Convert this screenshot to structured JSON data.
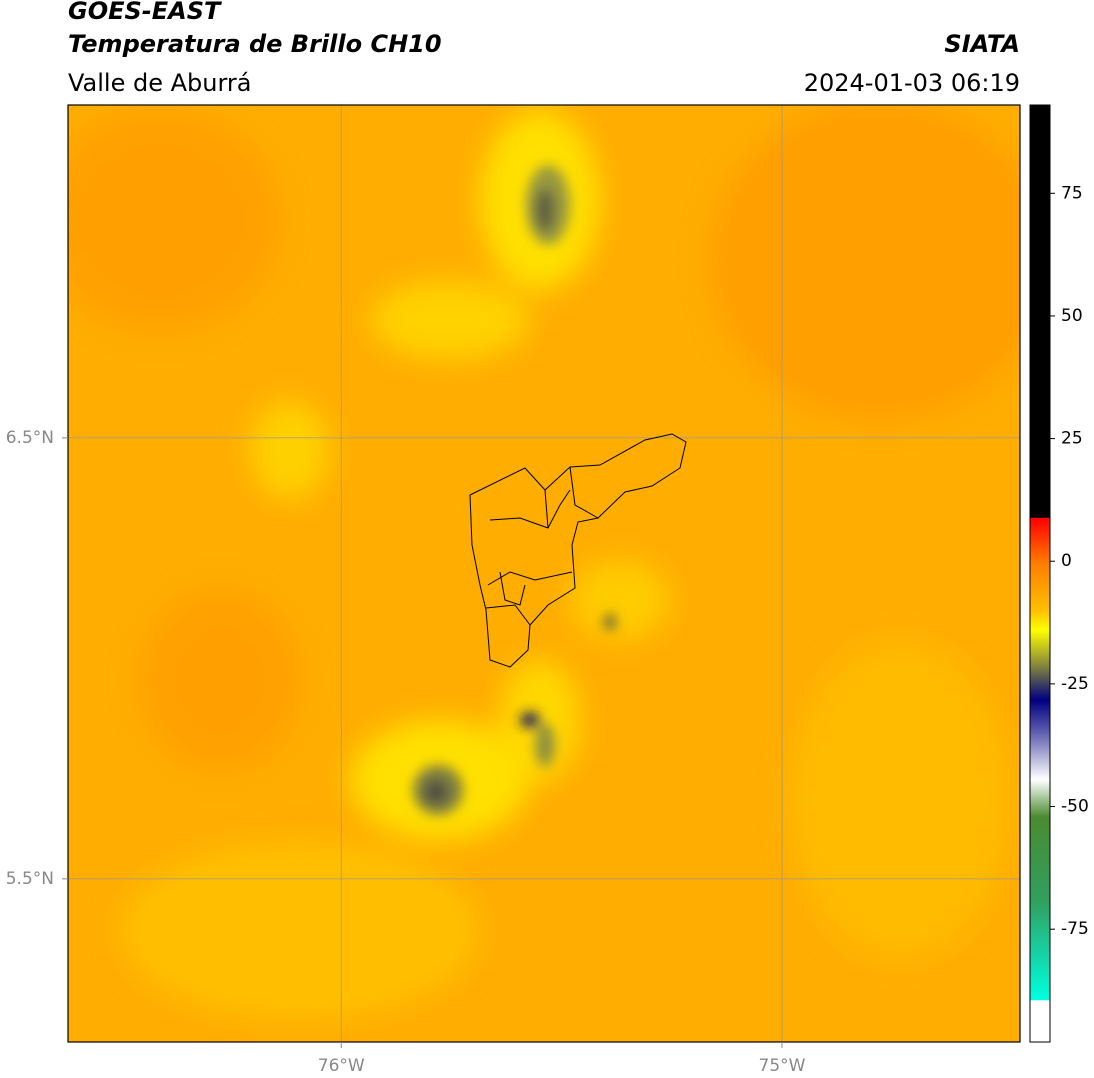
{
  "header": {
    "line1": "GOES-EAST",
    "title": "Temperatura de Brillo CH10",
    "region": "Valle de Aburrá",
    "source": "SIATA",
    "datetime": "2024-01-03 06:19"
  },
  "map": {
    "xlim": [
      -76.62,
      -74.46
    ],
    "ylim": [
      5.13,
      7.255
    ],
    "xticks": [
      {
        "value": -76,
        "label": "76°W"
      },
      {
        "value": -75,
        "label": "75°W"
      }
    ],
    "yticks": [
      {
        "value": 6.5,
        "label": "6.5°N"
      },
      {
        "value": 5.5,
        "label": "5.5°N"
      }
    ],
    "grid": true
  },
  "colorbar": {
    "lim": [
      -98,
      93
    ],
    "ticks": [
      75,
      50,
      25,
      0,
      -25,
      -50,
      -75
    ]
  }
}
